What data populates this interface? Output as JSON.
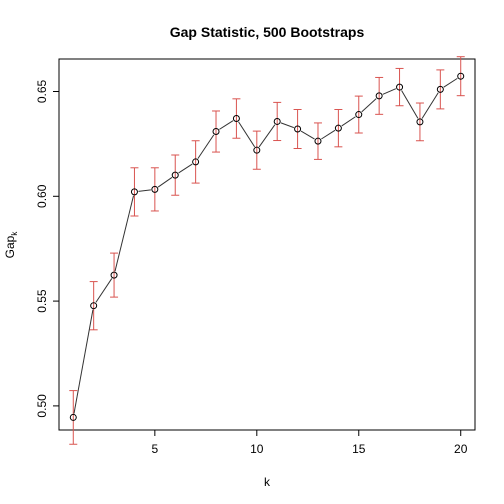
{
  "chart_data": {
    "type": "line",
    "title": "Gap Statistic, 500 Bootstraps",
    "xlabel": "k",
    "ylabel_main": "Gap",
    "ylabel_sub": "k",
    "xlim": [
      0.3,
      20.7
    ],
    "ylim": [
      0.4885,
      0.6655
    ],
    "x_ticks": [
      5,
      10,
      15,
      20
    ],
    "y_ticks": [
      0.5,
      0.55,
      0.6,
      0.65
    ],
    "x_tick_labels": [
      "5",
      "10",
      "15",
      "20"
    ],
    "y_tick_labels": [
      "0.50",
      "0.55",
      "0.60",
      "0.65"
    ],
    "grid": false,
    "line_color": "#333333",
    "point_color": "#000000",
    "errorbar_color": "#d9534f",
    "series": [
      {
        "x": [
          1,
          2,
          3,
          4,
          5,
          6,
          7,
          8,
          9,
          10,
          11,
          12,
          13,
          14,
          15,
          16,
          17,
          18,
          19,
          20
        ],
        "y": [
          0.4945,
          0.5478,
          0.5624,
          0.6021,
          0.6033,
          0.6101,
          0.6164,
          0.6309,
          0.6371,
          0.622,
          0.6357,
          0.6321,
          0.6263,
          0.6325,
          0.639,
          0.6479,
          0.6521,
          0.6355,
          0.651,
          0.6573
        ],
        "err": [
          0.0128,
          0.0115,
          0.0105,
          0.0115,
          0.0103,
          0.0096,
          0.0101,
          0.0098,
          0.0094,
          0.0091,
          0.0091,
          0.0093,
          0.0087,
          0.0089,
          0.0088,
          0.0088,
          0.0089,
          0.009,
          0.0093,
          0.0093
        ]
      }
    ]
  }
}
